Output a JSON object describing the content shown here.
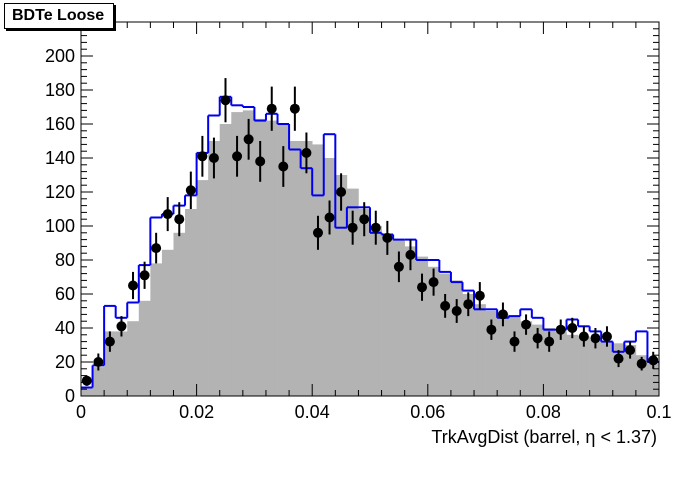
{
  "chart_data": {
    "type": "histogram",
    "title": "BDTe Loose",
    "xlabel": "TrkAvgDist (barrel,  η < 1.37)",
    "ylabel": "",
    "xlim": [
      0,
      0.1
    ],
    "ylim": [
      0,
      220
    ],
    "x_ticks": [
      "0",
      "0.02",
      "0.04",
      "0.06",
      "0.08",
      "0.1"
    ],
    "y_ticks": [
      "0",
      "20",
      "40",
      "60",
      "80",
      "100",
      "120",
      "140",
      "160",
      "180",
      "200"
    ],
    "bin_edges_start": 0.0,
    "bin_width": 0.002,
    "grid": false,
    "legend": "none",
    "colors": {
      "filled": "#b3b3b3",
      "line": "#0000ee",
      "points": "#000000"
    },
    "series": [
      {
        "style": "filled",
        "values": [
          5,
          17,
          38,
          38,
          44,
          56,
          78,
          86,
          96,
          110,
          127,
          150,
          160,
          167,
          168,
          163,
          162,
          160,
          150,
          150,
          148,
          140,
          130,
          122,
          110,
          100,
          95,
          92,
          88,
          82,
          76,
          72,
          68,
          60,
          54,
          50,
          48,
          47,
          44,
          42,
          40,
          38,
          36,
          35,
          33,
          32,
          31,
          30,
          24,
          20
        ]
      },
      {
        "style": "step",
        "values": [
          5,
          18,
          53,
          46,
          55,
          77,
          105,
          107,
          112,
          118,
          143,
          165,
          176,
          171,
          170,
          162,
          166,
          160,
          145,
          134,
          118,
          154,
          99,
          111,
          111,
          96,
          95,
          92,
          92,
          80,
          80,
          73,
          67,
          62,
          51,
          51,
          46,
          47,
          51,
          46,
          39,
          39,
          45,
          41,
          38,
          32,
          26,
          32,
          38,
          20
        ]
      },
      {
        "style": "points",
        "values": [
          9,
          20,
          32,
          41,
          65,
          71,
          87,
          107,
          104,
          121,
          141,
          140,
          174,
          141,
          151,
          138,
          169,
          135,
          169,
          143,
          96,
          105,
          120,
          99,
          104,
          99,
          93,
          76,
          83,
          64,
          67,
          53,
          50,
          54,
          59,
          39,
          48,
          32,
          42,
          34,
          32,
          39,
          40,
          35,
          34,
          35,
          22,
          27,
          19,
          21
        ],
        "errors": [
          3,
          5,
          6,
          6,
          8,
          8,
          9,
          10,
          10,
          11,
          12,
          12,
          13,
          12,
          12,
          12,
          13,
          12,
          13,
          12,
          10,
          10,
          11,
          10,
          10,
          10,
          10,
          9,
          9,
          8,
          8,
          7,
          7,
          7,
          8,
          6,
          7,
          6,
          6,
          6,
          6,
          6,
          6,
          6,
          6,
          6,
          5,
          5,
          4,
          5
        ]
      }
    ]
  }
}
